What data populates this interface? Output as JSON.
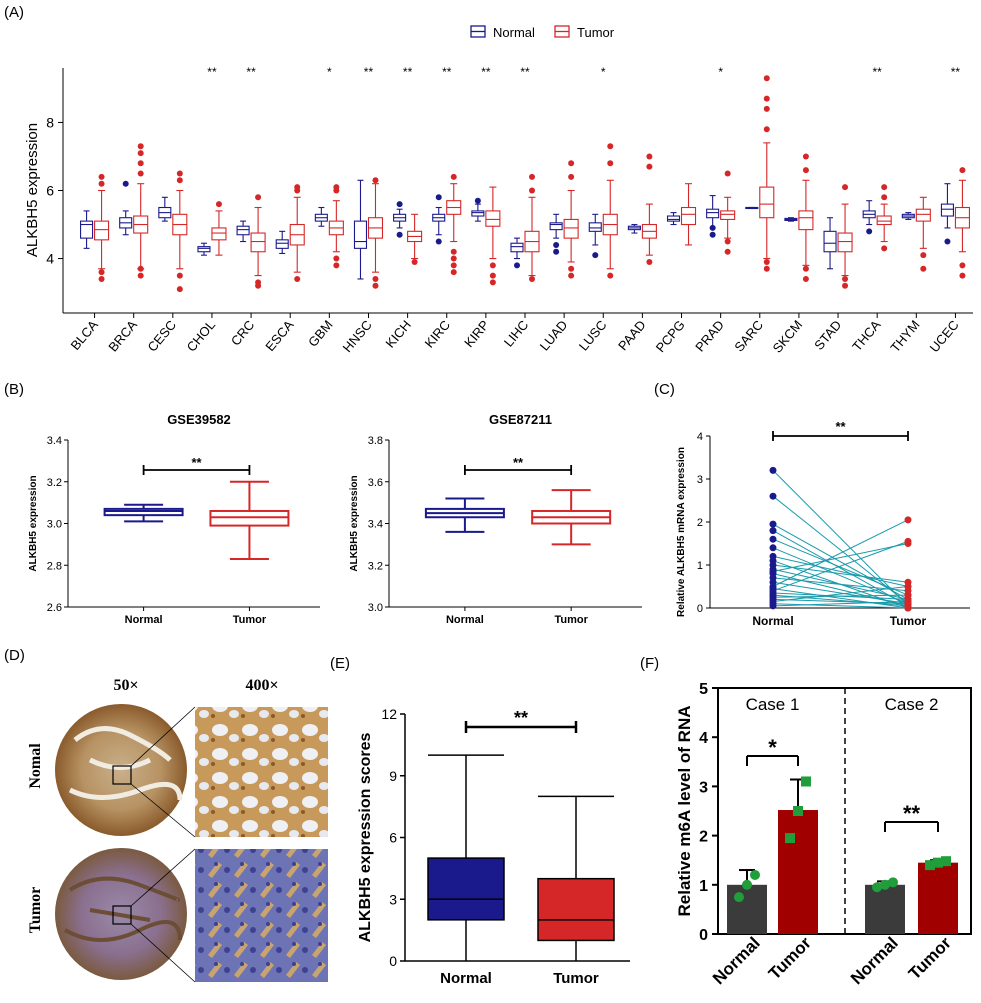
{
  "panels": {
    "A": "(A)",
    "B": "(B)",
    "C": "(C)",
    "D": "(D)",
    "E": "(E)",
    "F": "(F)"
  },
  "colors": {
    "normal": "#1a1a8c",
    "tumor": "#d62728",
    "line": "#1a9aaa",
    "dark_bar": "#3b3b3b",
    "red_bar": "#a00000",
    "green_dot": "#1f9e3a"
  },
  "chart_data": [
    {
      "id": "A",
      "type": "box",
      "ylabel": "ALKBH5 expression",
      "yticks": [
        4,
        6,
        8
      ],
      "ylim": [
        2.4,
        9.6
      ],
      "legend": [
        "Normal",
        "Tumor"
      ],
      "categories": [
        "BLCA",
        "BRCA",
        "CESC",
        "CHOL",
        "CRC",
        "ESCA",
        "GBM",
        "HNSC",
        "KICH",
        "KIRC",
        "KIRP",
        "LIHC",
        "LUAD",
        "LUSC",
        "PAAD",
        "PCPG",
        "PRAD",
        "SARC",
        "SKCM",
        "STAD",
        "THCA",
        "THYM",
        "UCEC"
      ],
      "significance": [
        "",
        "",
        "",
        "**",
        "**",
        "",
        "*",
        "**",
        "**",
        "**",
        "**",
        "**",
        "",
        "*",
        "",
        "",
        "*",
        "",
        "",
        "",
        "**",
        "",
        "**"
      ],
      "normal": [
        {
          "min": 4.3,
          "q1": 4.6,
          "med": 5.0,
          "q3": 5.1,
          "max": 5.4
        },
        {
          "min": 4.7,
          "q1": 4.9,
          "med": 5.05,
          "q3": 5.2,
          "max": 5.4
        },
        {
          "min": 5.1,
          "q1": 5.2,
          "med": 5.35,
          "q3": 5.5,
          "max": 5.8
        },
        {
          "min": 4.1,
          "q1": 4.2,
          "med": 4.3,
          "q3": 4.35,
          "max": 4.45
        },
        {
          "min": 4.5,
          "q1": 4.7,
          "med": 4.85,
          "q3": 4.95,
          "max": 5.1
        },
        {
          "min": 4.15,
          "q1": 4.3,
          "med": 4.45,
          "q3": 4.55,
          "max": 4.8
        },
        {
          "min": 4.95,
          "q1": 5.1,
          "med": 5.2,
          "q3": 5.3,
          "max": 5.5
        },
        {
          "min": 3.4,
          "q1": 4.3,
          "med": 4.5,
          "q3": 5.1,
          "max": 6.3
        },
        {
          "min": 4.9,
          "q1": 5.1,
          "med": 5.2,
          "q3": 5.3,
          "max": 5.45
        },
        {
          "min": 4.7,
          "q1": 5.1,
          "med": 5.2,
          "q3": 5.3,
          "max": 5.5
        },
        {
          "min": 5.1,
          "q1": 5.25,
          "med": 5.35,
          "q3": 5.4,
          "max": 5.6
        },
        {
          "min": 4.0,
          "q1": 4.2,
          "med": 4.35,
          "q3": 4.45,
          "max": 4.6
        },
        {
          "min": 4.6,
          "q1": 4.85,
          "med": 5.0,
          "q3": 5.05,
          "max": 5.3
        },
        {
          "min": 4.4,
          "q1": 4.8,
          "med": 4.9,
          "q3": 5.05,
          "max": 5.3
        },
        {
          "min": 4.75,
          "q1": 4.85,
          "med": 4.9,
          "q3": 4.95,
          "max": 5.0
        },
        {
          "min": 5.0,
          "q1": 5.1,
          "med": 5.15,
          "q3": 5.25,
          "max": 5.35
        },
        {
          "min": 4.9,
          "q1": 5.2,
          "med": 5.35,
          "q3": 5.45,
          "max": 5.85
        },
        {
          "min": 5.5,
          "q1": 5.5,
          "med": 5.5,
          "q3": 5.5,
          "max": 5.5
        },
        {
          "min": 5.1,
          "q1": 5.12,
          "med": 5.15,
          "q3": 5.18,
          "max": 5.2
        },
        {
          "min": 3.7,
          "q1": 4.2,
          "med": 4.45,
          "q3": 4.8,
          "max": 5.2
        },
        {
          "min": 5.0,
          "q1": 5.2,
          "med": 5.3,
          "q3": 5.4,
          "max": 5.7
        },
        {
          "min": 5.15,
          "q1": 5.2,
          "med": 5.25,
          "q3": 5.3,
          "max": 5.35
        },
        {
          "min": 4.9,
          "q1": 5.25,
          "med": 5.45,
          "q3": 5.6,
          "max": 6.2
        }
      ],
      "tumor": [
        {
          "min": 3.7,
          "q1": 4.55,
          "med": 4.85,
          "q3": 5.1,
          "max": 6.0
        },
        {
          "min": 3.7,
          "q1": 4.75,
          "med": 5.0,
          "q3": 5.25,
          "max": 6.2
        },
        {
          "min": 3.7,
          "q1": 4.7,
          "med": 5.0,
          "q3": 5.3,
          "max": 6.0
        },
        {
          "min": 4.1,
          "q1": 4.55,
          "med": 4.75,
          "q3": 4.9,
          "max": 5.4
        },
        {
          "min": 3.5,
          "q1": 4.2,
          "med": 4.5,
          "q3": 4.75,
          "max": 5.5
        },
        {
          "min": 3.6,
          "q1": 4.4,
          "med": 4.7,
          "q3": 5.0,
          "max": 5.8
        },
        {
          "min": 4.2,
          "q1": 4.7,
          "med": 4.9,
          "q3": 5.1,
          "max": 5.7
        },
        {
          "min": 3.6,
          "q1": 4.6,
          "med": 4.9,
          "q3": 5.2,
          "max": 6.2
        },
        {
          "min": 4.0,
          "q1": 4.5,
          "med": 4.65,
          "q3": 4.8,
          "max": 5.3
        },
        {
          "min": 4.5,
          "q1": 5.3,
          "med": 5.5,
          "q3": 5.7,
          "max": 6.2
        },
        {
          "min": 4.0,
          "q1": 4.95,
          "med": 5.15,
          "q3": 5.4,
          "max": 6.1
        },
        {
          "min": 3.5,
          "q1": 4.2,
          "med": 4.5,
          "q3": 4.8,
          "max": 5.8
        },
        {
          "min": 3.9,
          "q1": 4.6,
          "med": 4.9,
          "q3": 5.15,
          "max": 6.0
        },
        {
          "min": 3.7,
          "q1": 4.7,
          "med": 5.0,
          "q3": 5.3,
          "max": 6.3
        },
        {
          "min": 4.1,
          "q1": 4.6,
          "med": 4.8,
          "q3": 5.0,
          "max": 5.6
        },
        {
          "min": 4.4,
          "q1": 5.0,
          "med": 5.3,
          "q3": 5.5,
          "max": 6.2
        },
        {
          "min": 4.6,
          "q1": 5.15,
          "med": 5.3,
          "q3": 5.4,
          "max": 5.8
        },
        {
          "min": 4.0,
          "q1": 5.2,
          "med": 5.6,
          "q3": 6.1,
          "max": 7.4
        },
        {
          "min": 3.8,
          "q1": 4.85,
          "med": 5.2,
          "q3": 5.4,
          "max": 6.3
        },
        {
          "min": 3.5,
          "q1": 4.2,
          "med": 4.5,
          "q3": 4.75,
          "max": 5.6
        },
        {
          "min": 4.5,
          "q1": 5.0,
          "med": 5.1,
          "q3": 5.25,
          "max": 5.6
        },
        {
          "min": 4.3,
          "q1": 5.1,
          "med": 5.3,
          "q3": 5.45,
          "max": 5.8
        },
        {
          "min": 4.2,
          "q1": 4.9,
          "med": 5.2,
          "q3": 5.5,
          "max": 6.3
        }
      ],
      "outliers_tumor": [
        [
          6.2,
          6.4,
          3.4,
          3.6
        ],
        [
          6.5,
          6.8,
          7.1,
          7.3,
          3.5,
          3.7
        ],
        [
          6.3,
          6.5,
          3.1,
          3.5
        ],
        [
          5.6
        ],
        [
          5.8,
          3.2,
          3.3
        ],
        [
          6.0,
          6.1,
          3.4
        ],
        [
          6.0,
          6.1,
          3.8,
          4.0
        ],
        [
          3.2,
          3.4,
          6.3
        ],
        [
          3.9
        ],
        [
          6.4,
          4.0,
          4.2,
          3.8,
          3.6
        ],
        [
          3.3,
          3.5,
          3.8
        ],
        [
          6.0,
          6.4,
          3.4
        ],
        [
          6.4,
          6.8,
          3.5,
          3.7
        ],
        [
          7.3,
          6.8,
          3.5
        ],
        [
          6.7,
          7.0,
          3.9
        ],
        [],
        [
          6.5,
          4.2,
          4.5
        ],
        [
          7.8,
          8.4,
          9.3,
          8.7,
          3.7,
          3.9
        ],
        [
          6.6,
          7.0,
          3.4,
          3.7
        ],
        [
          6.1,
          3.2,
          3.4
        ],
        [
          5.8,
          6.1,
          4.3
        ],
        [
          4.1,
          3.7
        ],
        [
          6.6,
          3.5,
          3.8
        ]
      ],
      "outliers_normal": [
        [],
        [
          6.2
        ],
        [],
        [],
        [],
        [],
        [],
        [],
        [
          4.7,
          5.6
        ],
        [
          5.8,
          4.5
        ],
        [
          5.7
        ],
        [
          3.8
        ],
        [
          4.2,
          4.4
        ],
        [
          4.1
        ],
        [],
        [],
        [
          4.7,
          4.9
        ],
        [],
        [],
        [],
        [
          4.8
        ],
        [],
        [
          4.5
        ]
      ]
    },
    {
      "id": "B1",
      "type": "box",
      "title": "GSE39582",
      "ylabel": "ALKBH5 expression",
      "yticks": [
        2.6,
        2.8,
        3.0,
        3.2,
        3.4
      ],
      "ylim": [
        2.6,
        3.4
      ],
      "categories": [
        "Normal",
        "Tumor"
      ],
      "boxes": [
        {
          "min": 3.01,
          "q1": 3.04,
          "med": 3.06,
          "q3": 3.07,
          "max": 3.09
        },
        {
          "min": 2.83,
          "q1": 2.99,
          "med": 3.03,
          "q3": 3.06,
          "max": 3.2
        }
      ],
      "significance": "**"
    },
    {
      "id": "B2",
      "type": "box",
      "title": "GSE87211",
      "ylabel": "ALKBH5 expression",
      "yticks": [
        3.0,
        3.2,
        3.4,
        3.6,
        3.8
      ],
      "ylim": [
        3.0,
        3.8
      ],
      "categories": [
        "Normal",
        "Tumor"
      ],
      "boxes": [
        {
          "min": 3.36,
          "q1": 3.43,
          "med": 3.45,
          "q3": 3.47,
          "max": 3.52
        },
        {
          "min": 3.3,
          "q1": 3.4,
          "med": 3.43,
          "q3": 3.46,
          "max": 3.56
        }
      ],
      "significance": "**"
    },
    {
      "id": "C",
      "type": "paired",
      "ylabel": "Relative ALKBH5 mRNA expression",
      "yticks": [
        0,
        1,
        2,
        3,
        4
      ],
      "ylim": [
        0,
        4
      ],
      "categories": [
        "Normal",
        "Tumor"
      ],
      "pairs": [
        [
          3.2,
          0.05
        ],
        [
          2.6,
          0.1
        ],
        [
          1.95,
          0.2
        ],
        [
          1.8,
          0.05
        ],
        [
          1.6,
          0.3
        ],
        [
          1.4,
          0.1
        ],
        [
          1.2,
          0.5
        ],
        [
          1.1,
          0.0
        ],
        [
          1.0,
          0.6
        ],
        [
          0.9,
          0.2
        ],
        [
          0.85,
          1.5
        ],
        [
          0.8,
          0.05
        ],
        [
          0.7,
          0.4
        ],
        [
          0.6,
          0.1
        ],
        [
          0.5,
          2.05
        ],
        [
          0.45,
          0.0
        ],
        [
          0.4,
          1.55
        ],
        [
          0.35,
          0.2
        ],
        [
          0.3,
          0.05
        ],
        [
          0.25,
          0.3
        ],
        [
          0.2,
          0.1
        ],
        [
          0.15,
          0.5
        ],
        [
          0.1,
          0.0
        ],
        [
          0.05,
          0.15
        ]
      ],
      "significance": "**"
    },
    {
      "id": "E",
      "type": "box",
      "ylabel": "ALKBH5 expression scores",
      "yticks": [
        0,
        3,
        6,
        9,
        12
      ],
      "ylim": [
        0,
        12
      ],
      "categories": [
        "Normal",
        "Tumor"
      ],
      "boxes": [
        {
          "min": 0,
          "q1": 2,
          "med": 3,
          "q3": 5,
          "max": 10
        },
        {
          "min": 0,
          "q1": 1,
          "med": 2,
          "q3": 4,
          "max": 8
        }
      ],
      "significance": "**"
    },
    {
      "id": "F",
      "type": "bar",
      "ylabel": "Relative m6A level of RNA",
      "yticks": [
        0,
        1,
        2,
        3,
        4,
        5
      ],
      "ylim": [
        0,
        5
      ],
      "groups": [
        {
          "name": "Case 1",
          "categories": [
            "Normal",
            "Tumor"
          ],
          "values": [
            1.0,
            2.52
          ],
          "err": [
            0.3,
            0.62
          ],
          "points": [
            [
              0.75,
              1.0,
              1.2
            ],
            [
              1.95,
              2.5,
              3.1
            ]
          ],
          "significance": "*"
        },
        {
          "name": "Case 2",
          "categories": [
            "Normal",
            "Tumor"
          ],
          "values": [
            1.0,
            1.45
          ],
          "err": [
            0.07,
            0.05
          ],
          "points": [
            [
              0.95,
              1.0,
              1.05
            ],
            [
              1.4,
              1.45,
              1.48
            ]
          ],
          "significance": "**"
        }
      ]
    }
  ],
  "panelD": {
    "mag_low": "50×",
    "mag_high": "400×",
    "row1": "Nomal",
    "row2": "Tumor"
  }
}
